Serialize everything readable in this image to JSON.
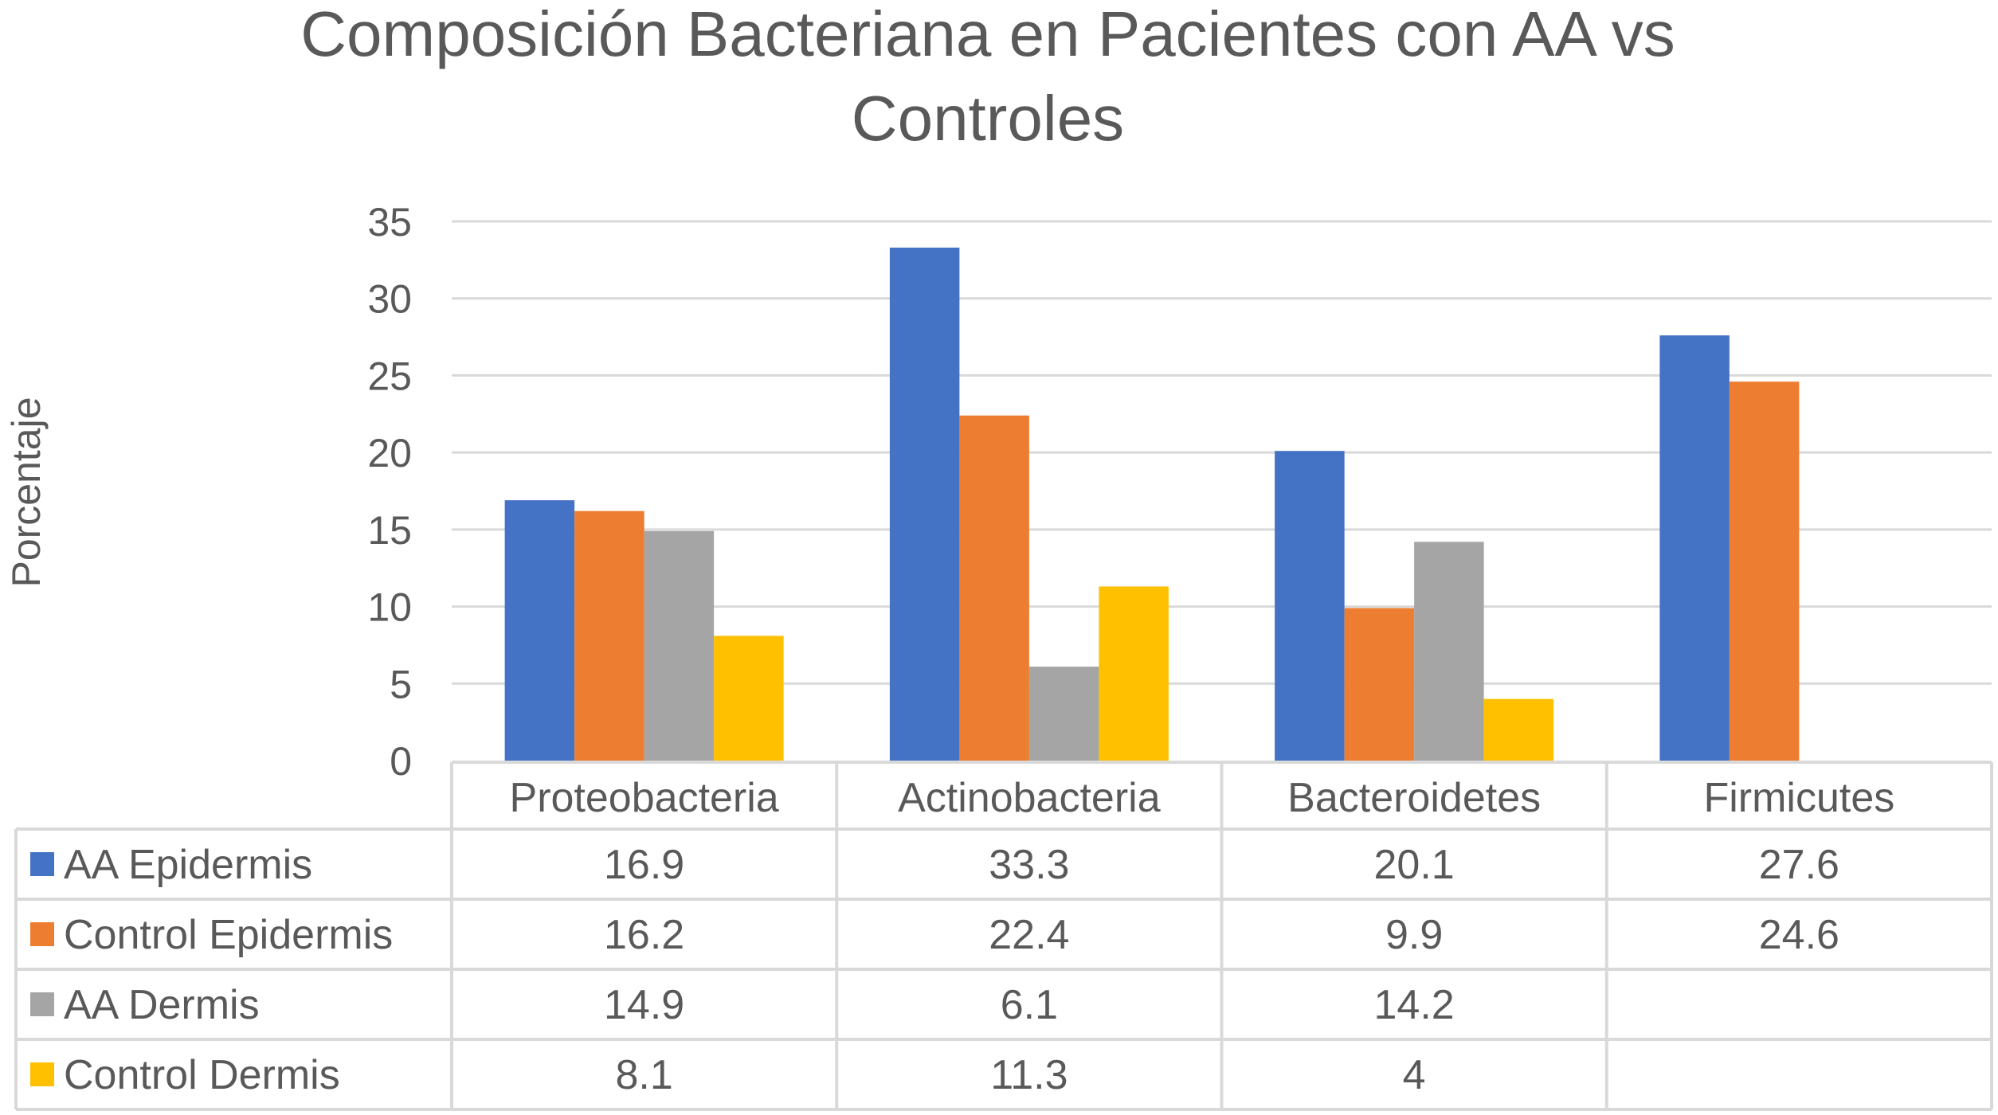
{
  "chart_data": {
    "type": "bar",
    "title_lines": [
      "Composición Bacteriana en Pacientes con AA vs",
      "Controles"
    ],
    "xlabel": "",
    "ylabel": "Porcentaje",
    "ylim": [
      0,
      35
    ],
    "yticks": [
      "0",
      "5",
      "10",
      "15",
      "20",
      "25",
      "30",
      "35"
    ],
    "ytick_values": [
      0,
      5,
      10,
      15,
      20,
      25,
      30,
      35
    ],
    "grid": true,
    "legend": "data-table-bottom",
    "categories": [
      "Proteobacteria",
      "Actinobacteria",
      "Bacteroidetes",
      "Firmicutes"
    ],
    "series": [
      {
        "name": "AA Epidermis",
        "color": "#4472C4",
        "values": [
          16.9,
          33.3,
          20.1,
          27.6
        ],
        "labels": [
          "16.9",
          "33.3",
          "20.1",
          "27.6"
        ]
      },
      {
        "name": "Control Epidermis",
        "color": "#ED7D31",
        "values": [
          16.2,
          22.4,
          9.9,
          24.6
        ],
        "labels": [
          "16.2",
          "22.4",
          "9.9",
          "24.6"
        ]
      },
      {
        "name": "AA Dermis",
        "color": "#A5A5A5",
        "values": [
          14.9,
          6.1,
          14.2,
          null
        ],
        "labels": [
          "14.9",
          "6.1",
          "14.2",
          ""
        ]
      },
      {
        "name": "Control Dermis",
        "color": "#FFC000",
        "values": [
          8.1,
          11.3,
          4,
          null
        ],
        "labels": [
          "8.1",
          "11.3",
          "4",
          ""
        ]
      }
    ]
  }
}
